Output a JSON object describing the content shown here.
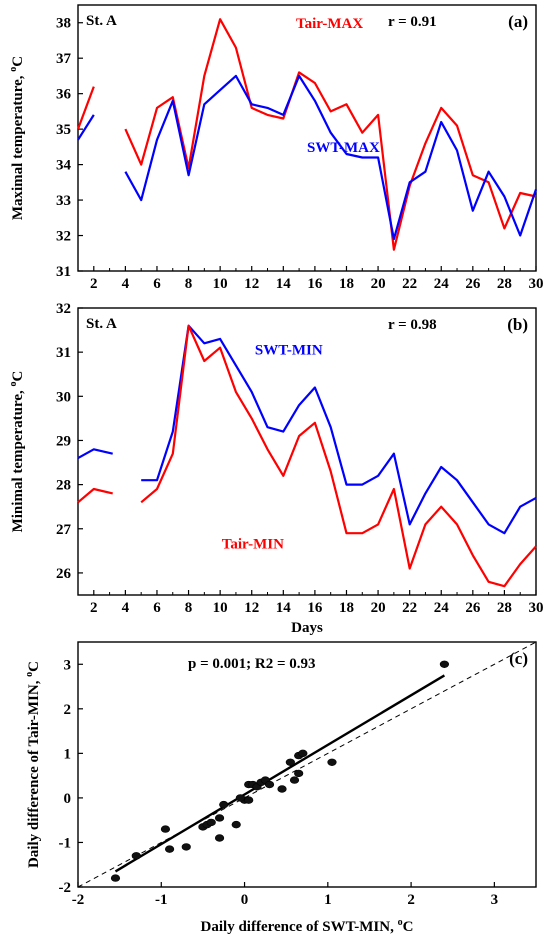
{
  "chart_data": [
    {
      "type": "line",
      "panel_label": "(a)",
      "station": "St. A",
      "annotation": "r = 0.91",
      "ylabel": "Maximal temperature, ",
      "ylabel_unit": "oC",
      "xlabel": "",
      "xlim": [
        1,
        30
      ],
      "ylim": [
        31,
        38.5
      ],
      "x_ticks": [
        2,
        4,
        6,
        8,
        10,
        12,
        14,
        16,
        18,
        20,
        22,
        24,
        26,
        28,
        30
      ],
      "y_ticks": [
        31,
        32,
        33,
        34,
        35,
        36,
        37,
        38
      ],
      "series": [
        {
          "name": "Tair-MAX",
          "color": "#ff0000",
          "label_pos": [
            14.8,
            37.85
          ],
          "segments": [
            [
              [
                1,
                35.0
              ],
              [
                2,
                36.2
              ]
            ],
            [
              [
                4,
                35.0
              ],
              [
                5,
                34.0
              ],
              [
                6,
                35.6
              ],
              [
                7,
                35.9
              ],
              [
                8,
                33.9
              ],
              [
                9,
                36.5
              ],
              [
                10,
                38.1
              ],
              [
                11,
                37.3
              ],
              [
                12,
                35.6
              ],
              [
                13,
                35.4
              ],
              [
                14,
                35.3
              ],
              [
                15,
                36.6
              ],
              [
                16,
                36.3
              ],
              [
                17,
                35.5
              ],
              [
                18,
                35.7
              ],
              [
                19,
                34.9
              ],
              [
                20,
                35.4
              ],
              [
                21,
                31.6
              ],
              [
                22,
                33.4
              ],
              [
                23,
                34.6
              ],
              [
                24,
                35.6
              ],
              [
                25,
                35.1
              ],
              [
                26,
                33.7
              ],
              [
                27,
                33.5
              ],
              [
                28,
                32.2
              ],
              [
                29,
                33.2
              ],
              [
                30,
                33.1
              ]
            ]
          ]
        },
        {
          "name": "SWT-MAX",
          "color": "#0000ff",
          "label_pos": [
            15.5,
            34.35
          ],
          "segments": [
            [
              [
                1,
                34.7
              ],
              [
                2,
                35.4
              ]
            ],
            [
              [
                4,
                33.8
              ],
              [
                5,
                33.0
              ],
              [
                6,
                34.7
              ],
              [
                7,
                35.8
              ],
              [
                8,
                33.7
              ],
              [
                9,
                35.7
              ],
              [
                10,
                36.1
              ],
              [
                11,
                36.5
              ],
              [
                12,
                35.7
              ],
              [
                13,
                35.6
              ],
              [
                14,
                35.4
              ],
              [
                15,
                36.5
              ],
              [
                16,
                35.8
              ],
              [
                17,
                34.9
              ],
              [
                18,
                34.3
              ],
              [
                19,
                34.2
              ],
              [
                20,
                34.2
              ],
              [
                21,
                31.9
              ],
              [
                22,
                33.5
              ],
              [
                23,
                33.8
              ],
              [
                24,
                35.2
              ],
              [
                25,
                34.4
              ],
              [
                26,
                32.7
              ],
              [
                27,
                33.8
              ],
              [
                28,
                33.1
              ],
              [
                29,
                32.0
              ],
              [
                30,
                33.3
              ]
            ]
          ]
        }
      ]
    },
    {
      "type": "line",
      "panel_label": "(b)",
      "station": "St. A",
      "annotation": "r = 0.98",
      "ylabel": "Minimal temperature, ",
      "ylabel_unit": "oC",
      "xlabel": "Days",
      "xlim": [
        1,
        30
      ],
      "ylim": [
        25.5,
        32
      ],
      "x_ticks": [
        2,
        4,
        6,
        8,
        10,
        12,
        14,
        16,
        18,
        20,
        22,
        24,
        26,
        28,
        30
      ],
      "y_ticks": [
        26,
        27,
        28,
        29,
        30,
        31,
        32
      ],
      "series": [
        {
          "name": "SWT-MIN",
          "color": "#0000ff",
          "label_pos": [
            12.2,
            30.95
          ],
          "segments": [
            [
              [
                1,
                28.6
              ],
              [
                2,
                28.8
              ],
              [
                3.2,
                28.7
              ]
            ],
            [
              [
                5,
                28.1
              ],
              [
                6,
                28.1
              ],
              [
                7,
                29.2
              ],
              [
                8,
                31.6
              ],
              [
                9,
                31.2
              ],
              [
                10,
                31.3
              ],
              [
                11,
                30.7
              ],
              [
                12,
                30.1
              ],
              [
                13,
                29.3
              ],
              [
                14,
                29.2
              ],
              [
                15,
                29.8
              ],
              [
                16,
                30.2
              ],
              [
                17,
                29.3
              ],
              [
                18,
                28.0
              ],
              [
                19,
                28.0
              ],
              [
                20,
                28.2
              ],
              [
                21,
                28.7
              ],
              [
                22,
                27.1
              ],
              [
                23,
                27.8
              ],
              [
                24,
                28.4
              ],
              [
                25,
                28.1
              ],
              [
                26,
                27.6
              ],
              [
                27,
                27.1
              ],
              [
                28,
                26.9
              ],
              [
                29,
                27.5
              ],
              [
                30,
                27.7
              ]
            ]
          ]
        },
        {
          "name": "Tair-MIN",
          "color": "#ff0000",
          "label_pos": [
            10.1,
            26.55
          ],
          "segments": [
            [
              [
                1,
                27.6
              ],
              [
                2,
                27.9
              ],
              [
                3.2,
                27.8
              ]
            ],
            [
              [
                5,
                27.6
              ],
              [
                6,
                27.9
              ],
              [
                7,
                28.7
              ],
              [
                8,
                31.6
              ],
              [
                9,
                30.8
              ],
              [
                10,
                31.1
              ],
              [
                11,
                30.1
              ],
              [
                12,
                29.5
              ],
              [
                13,
                28.8
              ],
              [
                14,
                28.2
              ],
              [
                15,
                29.1
              ],
              [
                16,
                29.4
              ],
              [
                17,
                28.3
              ],
              [
                18,
                26.9
              ],
              [
                19,
                26.9
              ],
              [
                20,
                27.1
              ],
              [
                21,
                27.9
              ],
              [
                22,
                26.1
              ],
              [
                23,
                27.1
              ],
              [
                24,
                27.5
              ],
              [
                25,
                27.1
              ],
              [
                26,
                26.4
              ],
              [
                27,
                25.8
              ],
              [
                28,
                25.7
              ],
              [
                29,
                26.2
              ],
              [
                30,
                26.6
              ]
            ]
          ]
        }
      ]
    },
    {
      "type": "scatter",
      "panel_label": "(c)",
      "annotation": "p = 0.001;  R2 = 0.93",
      "xlabel": "Daily difference of SWT-MIN, ",
      "xlabel_unit": "oC",
      "ylabel": "Daily difference of Tair-MIN, ",
      "ylabel_unit": "oC",
      "xlim": [
        -2,
        3.5
      ],
      "ylim": [
        -2,
        3.5
      ],
      "x_ticks": [
        -2,
        -1,
        0,
        1,
        2,
        3
      ],
      "y_ticks": [
        -2,
        -1,
        0,
        1,
        2,
        3
      ],
      "points": [
        [
          2.4,
          3.0
        ],
        [
          -1.55,
          -1.8
        ],
        [
          -1.3,
          -1.3
        ],
        [
          -0.95,
          -0.7
        ],
        [
          -0.9,
          -1.15
        ],
        [
          -0.7,
          -1.1
        ],
        [
          -0.5,
          -0.65
        ],
        [
          -0.45,
          -0.6
        ],
        [
          -0.4,
          -0.55
        ],
        [
          -0.3,
          -0.9
        ],
        [
          -0.3,
          -0.45
        ],
        [
          -0.25,
          -0.15
        ],
        [
          -0.1,
          -0.6
        ],
        [
          0.0,
          -0.05
        ],
        [
          0.05,
          -0.05
        ],
        [
          0.05,
          0.3
        ],
        [
          0.1,
          0.3
        ],
        [
          0.15,
          0.25
        ],
        [
          0.2,
          0.35
        ],
        [
          0.25,
          0.4
        ],
        [
          0.3,
          0.3
        ],
        [
          0.45,
          0.2
        ],
        [
          0.55,
          0.8
        ],
        [
          0.6,
          0.4
        ],
        [
          0.65,
          0.55
        ],
        [
          0.65,
          0.95
        ],
        [
          0.7,
          1.0
        ],
        [
          1.05,
          0.8
        ],
        [
          -0.05,
          0.0
        ]
      ],
      "fit_line": [
        [
          -1.55,
          -1.65
        ],
        [
          2.4,
          2.75
        ]
      ],
      "reference_line": [
        [
          -2,
          -2
        ],
        [
          3.5,
          3.5
        ]
      ]
    }
  ]
}
